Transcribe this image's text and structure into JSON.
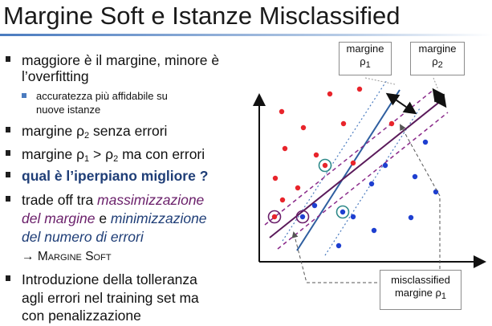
{
  "title": "Margine Soft e Istanze Misclassified",
  "bullets": {
    "b1_line1": "maggiore è il margine, minore è",
    "b1_line2": "l’overfitting",
    "sub1_line1": "accuratezza più affidabile su",
    "sub1_line2": "nuove istanze",
    "b2_pre": "margine ρ",
    "b2_sub": "2",
    "b2_post": " senza errori",
    "b3_a": "margine ρ",
    "b3_sub1": "1",
    "b3_b": " > ρ",
    "b3_sub2": "2",
    "b3_c": " ma con errori",
    "b4": "qual è l’iperpiano migliore ?",
    "b5_a": "trade off tra ",
    "b5_b": "massimizzazione",
    "b5_c": "del margine",
    "b5_d": " e ",
    "b5_e": "minimizzazione",
    "b5_f": "del numero di errori",
    "b5_arrow": "→",
    "b5_g": "Margine Soft",
    "b6_line1": "Introduzione della tolleranza",
    "b6_line2": "agli errori nel training set ma",
    "b6_line3": "con penalizzazione"
  },
  "diagram": {
    "box1_line1": "margine",
    "box1_line2": "ρ",
    "box1_sub": "1",
    "box2_line1": "margine",
    "box2_line2": "ρ",
    "box2_sub": "2",
    "box3_line1": "misclassified",
    "box3_line2": "margine ρ",
    "box3_sub": "1"
  },
  "colors": {
    "red_point": "#e8242b",
    "blue_point": "#1e3fd0",
    "hyperplane_2": "#5a1a5a",
    "dashed_margin": "#8a2a8a",
    "hyperplane_1": "#2f5fa0",
    "dotted_margin": "#4a7bbf",
    "circle_highlight": "#2f8a8a"
  }
}
